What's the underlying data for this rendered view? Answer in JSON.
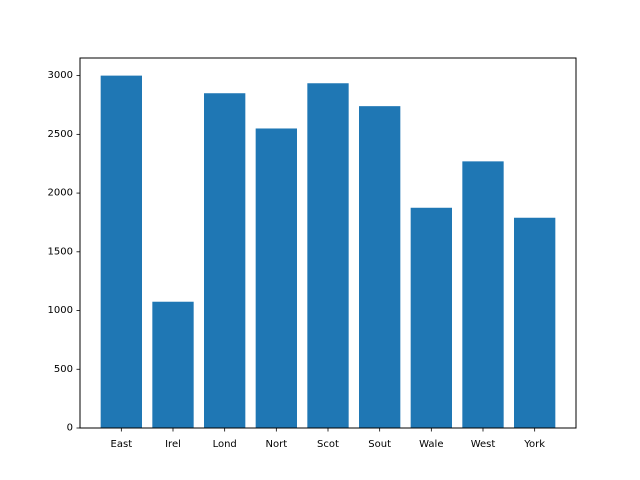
{
  "chart_data": {
    "type": "bar",
    "categories": [
      "East",
      "Irel",
      "Lond",
      "Nort",
      "Scot",
      "Sout",
      "Wale",
      "West",
      "York"
    ],
    "values": [
      3000,
      1075,
      2850,
      2550,
      2935,
      2740,
      1875,
      2270,
      1790
    ],
    "ylim": [
      0,
      3150
    ],
    "yticks": [
      0,
      500,
      1000,
      1500,
      2000,
      2500,
      3000
    ],
    "title": "",
    "xlabel": "",
    "ylabel": "",
    "grid": false,
    "bar_color": "#1f77b4"
  }
}
